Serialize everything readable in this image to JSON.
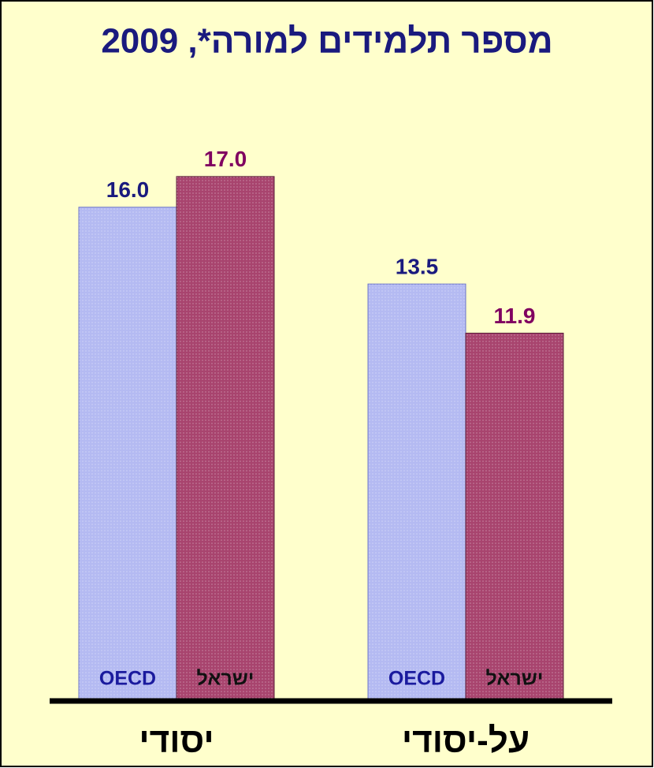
{
  "chart_data": {
    "type": "bar",
    "title": "מספר תלמידים למורה*, 2009",
    "categories": [
      "יסודי",
      "על-יסודי"
    ],
    "series": [
      {
        "name": "OECD",
        "color": "#b4baf2",
        "values": [
          16.0,
          13.5
        ],
        "value_labels": [
          "16.0",
          "13.5"
        ]
      },
      {
        "name": "ישראל",
        "color": "#a8446e",
        "values": [
          17.0,
          11.9
        ],
        "value_labels": [
          "17.0",
          "11.9"
        ]
      }
    ]
  }
}
